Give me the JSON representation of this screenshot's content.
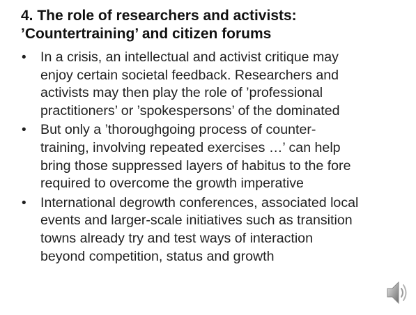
{
  "slide": {
    "title_lines": [
      "4. The role of researchers and activists:",
      "’Countertraining’ and citizen forums"
    ],
    "bullets": [
      {
        "lines": [
          "In a crisis, an intellectual and activist critique may",
          "enjoy certain societal feedback. Researchers and",
          "activists may then play the role of ’professional",
          "practitioners’ or ’spokespersons’ of the dominated"
        ]
      },
      {
        "lines": [
          "But only a ’thoroughgoing process of counter-",
          "training, involving repeated exercises …’ can help",
          "bring those suppressed layers of habitus to the fore",
          "required to overcome the growth imperative"
        ]
      },
      {
        "lines": [
          "International degrowth conferences, associated local",
          "events and larger-scale initiatives such as transition",
          "towns already try and test ways of interaction",
          "beyond competition, status and growth"
        ]
      }
    ],
    "bullet_glyph": "•",
    "audio_icon": "speaker-icon"
  }
}
